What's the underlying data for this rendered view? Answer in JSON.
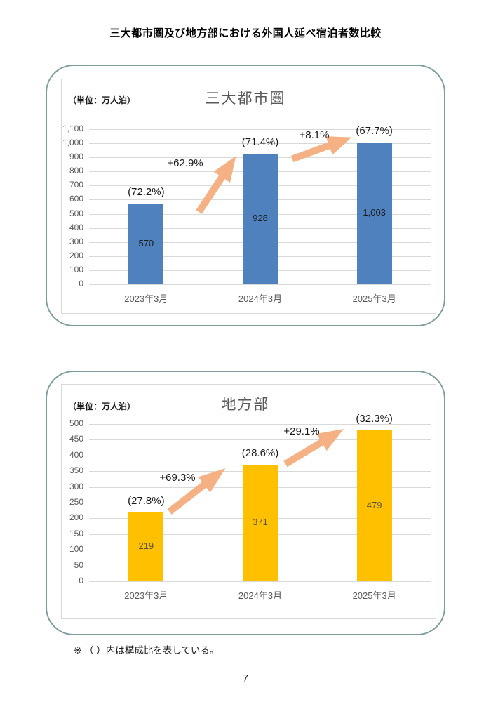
{
  "page": {
    "title": "三大都市圏及び地方部における外国人延べ宿泊者数比較",
    "footnote": "※ （ ）内は構成比を表している。",
    "page_number": "7"
  },
  "chart_data": [
    {
      "type": "bar",
      "title": "三大都市圏",
      "unit_label": "（単位：万人泊）",
      "categories": [
        "2023年3月",
        "2024年3月",
        "2025年3月"
      ],
      "values": [
        570,
        928,
        1003
      ],
      "value_labels": [
        "570",
        "928",
        "1,003"
      ],
      "share_labels": [
        "(72.2%)",
        "(71.4%)",
        "(67.7%)"
      ],
      "growth_labels": [
        "+62.9%",
        "+8.1%"
      ],
      "xlabel": "",
      "ylabel": "",
      "ylim": [
        0,
        1100
      ],
      "ytick_step": 100,
      "grid": true,
      "legend": false,
      "bar_color": "#4e81bd",
      "arrow_color": "#f5b183",
      "value_label_color": "#1a1a1a"
    },
    {
      "type": "bar",
      "title": "地方部",
      "unit_label": "（単位：万人泊）",
      "categories": [
        "2023年3月",
        "2024年3月",
        "2025年3月"
      ],
      "values": [
        219,
        371,
        479
      ],
      "value_labels": [
        "219",
        "371",
        "479"
      ],
      "share_labels": [
        "(27.8%)",
        "(28.6%)",
        "(32.3%)"
      ],
      "growth_labels": [
        "+69.3%",
        "+29.1%"
      ],
      "xlabel": "",
      "ylabel": "",
      "ylim": [
        0,
        500
      ],
      "ytick_step": 50,
      "grid": true,
      "legend": false,
      "bar_color": "#ffc000",
      "arrow_color": "#f5b183",
      "value_label_color": "#5a543e"
    }
  ]
}
